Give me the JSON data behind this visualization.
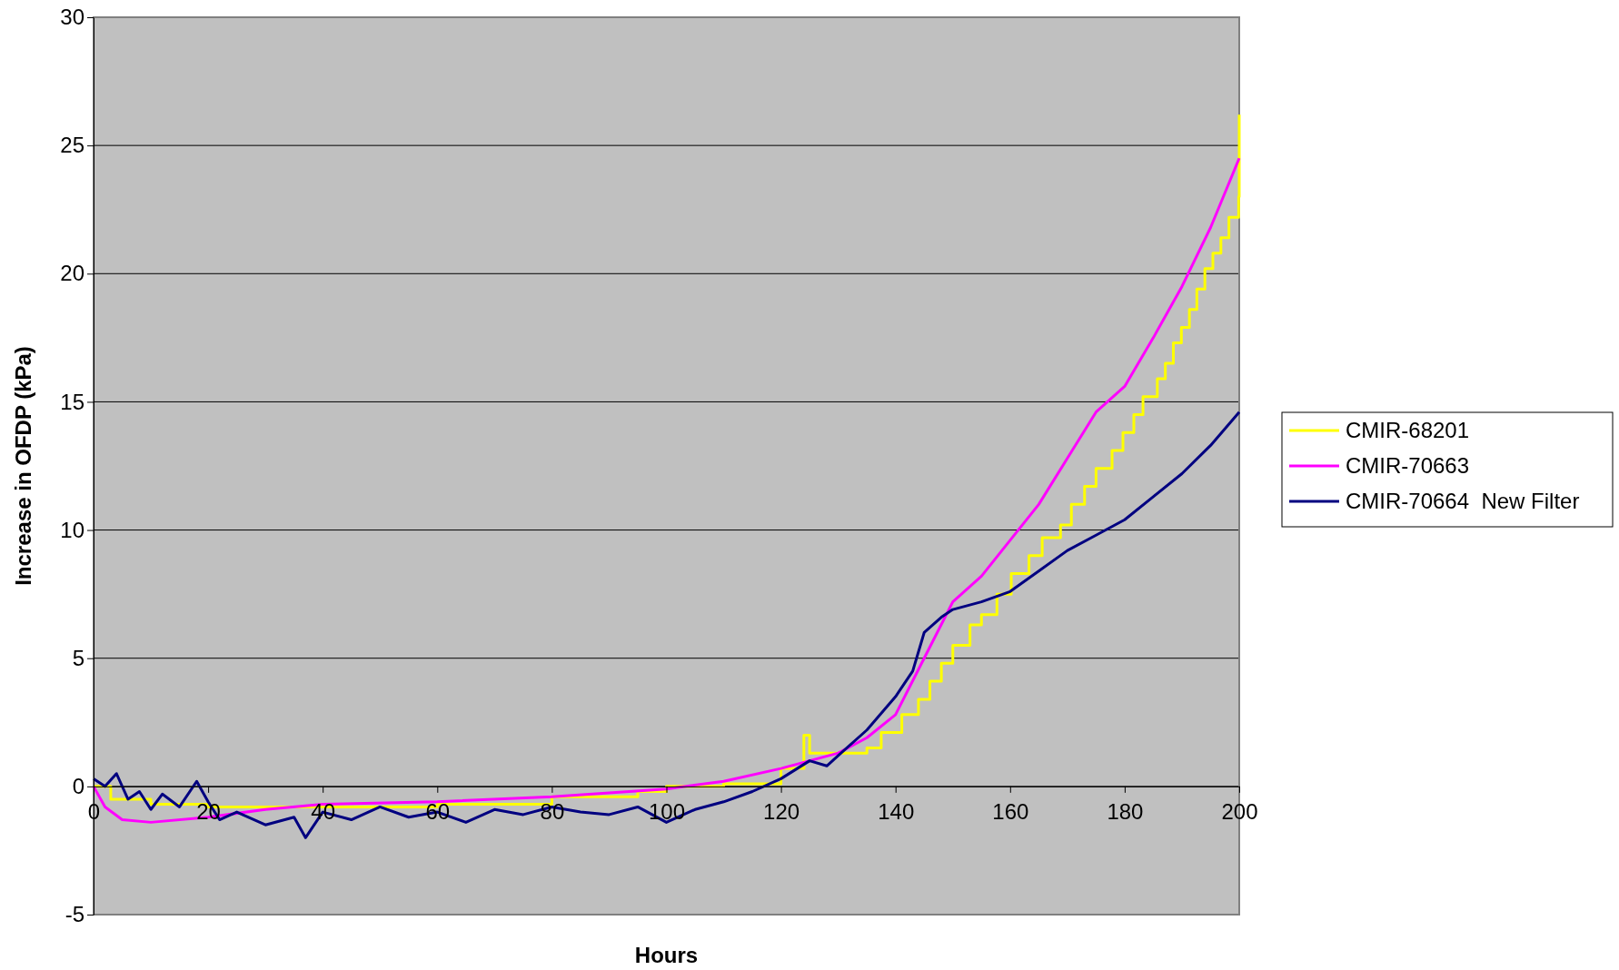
{
  "chart_data": {
    "type": "line",
    "xlabel": "Hours",
    "ylabel": "Increase in OFDP (kPa)",
    "xlim": [
      0,
      200
    ],
    "ylim": [
      -5,
      30
    ],
    "xticks": [
      0,
      20,
      40,
      60,
      80,
      100,
      120,
      140,
      160,
      180,
      200
    ],
    "yticks": [
      -5,
      0,
      5,
      10,
      15,
      20,
      25,
      30
    ],
    "grid": "y",
    "legend": "right",
    "line_style": "solid",
    "marker": "none",
    "series": [
      {
        "name": "CMIR-68201",
        "color": "#ffff00",
        "type": "step",
        "x": [
          0,
          3,
          10,
          20,
          40,
          60,
          80,
          95,
          100,
          110,
          120,
          124,
          125,
          130,
          135,
          137.5,
          141.1,
          144,
          146,
          148,
          150,
          153,
          155,
          157.7,
          160.2,
          163.3,
          165.6,
          168.8,
          170.7,
          173,
          175,
          177.8,
          179.7,
          181.6,
          183.2,
          185.7,
          187.1,
          188.5,
          189.9,
          191.3,
          192.6,
          194,
          195.4,
          196.8,
          198.2,
          199.9,
          200
        ],
        "values": [
          0,
          -0.5,
          -0.7,
          -0.8,
          -0.8,
          -0.7,
          -0.4,
          -0.2,
          0,
          0.1,
          0.7,
          2,
          1.3,
          1.3,
          1.5,
          2.1,
          2.8,
          3.4,
          4.1,
          4.8,
          5.5,
          6.3,
          6.7,
          7.5,
          8.3,
          9,
          9.7,
          10.2,
          11,
          11.7,
          12.4,
          13.1,
          13.8,
          14.5,
          15.2,
          15.9,
          16.5,
          17.3,
          17.9,
          18.6,
          19.4,
          20.2,
          20.8,
          21.4,
          22.2,
          23,
          26.2
        ]
      },
      {
        "name": "CMIR-70663",
        "color": "#ff00ff",
        "x": [
          0,
          2,
          5,
          10,
          20,
          30,
          40,
          60,
          80,
          100,
          110,
          120,
          130,
          135,
          140,
          145,
          150,
          155,
          160,
          165,
          170,
          175,
          180,
          185,
          190,
          195,
          200
        ],
        "values": [
          0,
          -0.8,
          -1.3,
          -1.4,
          -1.2,
          -0.9,
          -0.7,
          -0.6,
          -0.4,
          -0.1,
          0.2,
          0.7,
          1.3,
          1.9,
          2.8,
          5,
          7.2,
          8.2,
          9.6,
          11,
          12.8,
          14.6,
          15.6,
          17.5,
          19.5,
          21.8,
          24.5
        ]
      },
      {
        "name": "CMIR-70664  New Filter",
        "color": "#000080",
        "x": [
          0,
          2,
          4,
          6,
          8,
          10,
          12,
          15,
          18,
          20,
          22,
          25,
          30,
          35,
          37,
          40,
          45,
          50,
          55,
          60,
          65,
          70,
          75,
          80,
          85,
          90,
          95,
          100,
          105,
          110,
          115,
          120,
          125,
          128,
          130,
          135,
          140,
          143,
          145,
          148,
          150,
          155,
          160,
          165,
          170,
          175,
          180,
          185,
          190,
          195,
          200
        ],
        "values": [
          0.3,
          0,
          0.5,
          -0.5,
          -0.2,
          -0.9,
          -0.3,
          -0.8,
          0.2,
          -0.6,
          -1.3,
          -1,
          -1.5,
          -1.2,
          -2,
          -1,
          -1.3,
          -0.8,
          -1.2,
          -1,
          -1.4,
          -0.9,
          -1.1,
          -0.8,
          -1,
          -1.1,
          -0.8,
          -1.4,
          -0.9,
          -0.6,
          -0.2,
          0.3,
          1,
          0.8,
          1.2,
          2.2,
          3.5,
          4.5,
          6,
          6.6,
          6.9,
          7.2,
          7.6,
          8.4,
          9.2,
          9.8,
          10.4,
          11.3,
          12.2,
          13.3,
          14.6
        ]
      }
    ]
  }
}
